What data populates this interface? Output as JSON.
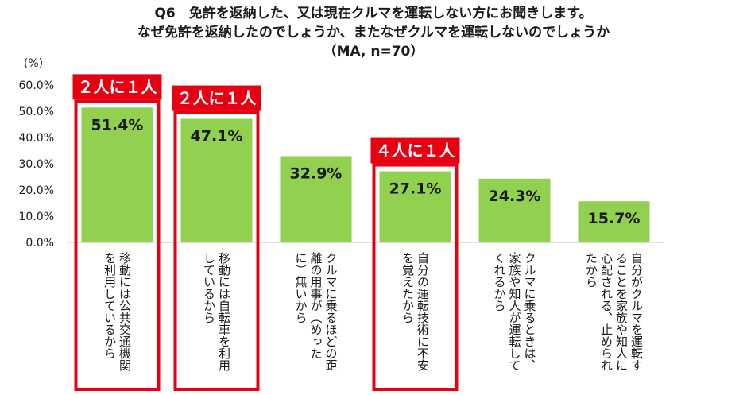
{
  "title": {
    "line1": "Q6　免許を返納した、又は現在クルマを運転しない方にお聞きします。",
    "line2": "なぜ免許を返納したのでしょうか、またなぜクルマを運転しないのでしょうか",
    "line3": "（MA, n=70）"
  },
  "colors": {
    "bar": "#92D050",
    "highlight": "#E60012",
    "text": "#1a1a1a",
    "axis": "#bfbfbf"
  },
  "chart_data": {
    "type": "bar",
    "title": "Q6　免許を返納した、又は現在クルマを運転しない方にお聞きします。なぜ免許を返納したのでしょうか、またなぜクルマを運転しないのでしょうか（MA, n=70）",
    "ylabel": "(%)",
    "ylim": [
      0,
      60
    ],
    "yticks": [
      "0.0%",
      "10.0%",
      "20.0%",
      "30.0%",
      "40.0%",
      "50.0%",
      "60.0%"
    ],
    "categories": [
      "移動には公共交通機関を利用しているから",
      "移動には自転車を利用しているから",
      "クルマに乗るほどの距離の用事が（めったに）無いから",
      "自分の運転技術に不安を覚えたから",
      "クルマに乗るときは、家族や知人が運転してくれるから",
      "自分がクルマを運転することを家族や知人に心配される、止められたから"
    ],
    "category_lines": [
      [
        "移動には公共交通機関",
        "を利用しているから"
      ],
      [
        "移動には自転車を利用",
        "しているから"
      ],
      [
        "クルマに乗るほどの距",
        "離の用事が（めった",
        "に）無いから"
      ],
      [
        "自分の運転技術に不安",
        "を覚えたから"
      ],
      [
        "クルマに乗るときは、",
        "家族や知人が運転して",
        "くれるから"
      ],
      [
        "自分がクルマを運転す",
        "ることを家族や知人に",
        "心配される、止められ",
        "たから"
      ]
    ],
    "values": [
      51.4,
      47.1,
      32.9,
      27.1,
      24.3,
      15.7
    ],
    "labels": [
      "51.4%",
      "47.1%",
      "32.9%",
      "27.1%",
      "24.3%",
      "15.7%"
    ],
    "annotations": [
      {
        "category_index": 0,
        "text": "２人に１人"
      },
      {
        "category_index": 1,
        "text": "２人に１人"
      },
      {
        "category_index": 3,
        "text": "４人に１人"
      }
    ]
  }
}
